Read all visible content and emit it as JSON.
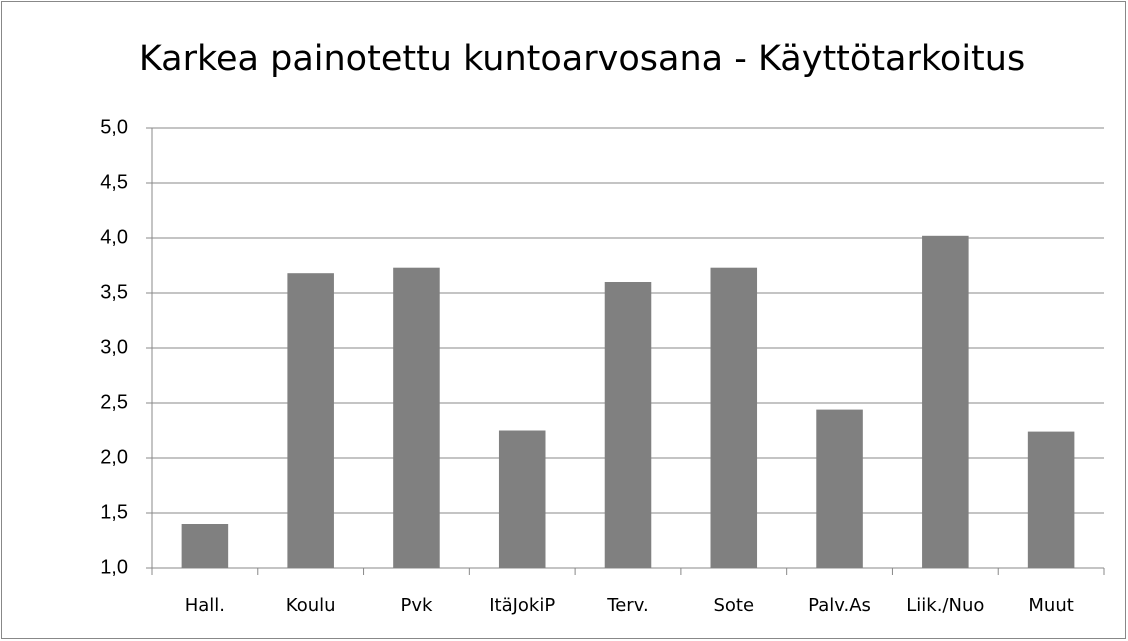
{
  "chart_data": {
    "type": "bar",
    "title": "Karkea painotettu kuntoarvosana - Käyttötarkoitus",
    "categories": [
      "Hall.",
      "Koulu",
      "Pvk",
      "ItäJokiP",
      "Terv.",
      "Sote",
      "Palv.As",
      "Liik./Nuo",
      "Muut"
    ],
    "values": [
      1.4,
      3.68,
      3.73,
      2.25,
      3.6,
      3.73,
      2.44,
      4.02,
      2.24
    ],
    "color": "#808080",
    "ylim": [
      1,
      5
    ],
    "yticks": [
      {
        "value": 1,
        "label": "1,0"
      },
      {
        "value": 1.5,
        "label": "1,5"
      },
      {
        "value": 2,
        "label": "2,0"
      },
      {
        "value": 2.5,
        "label": "2,5"
      },
      {
        "value": 3,
        "label": "3,0"
      },
      {
        "value": 3.5,
        "label": "3,5"
      },
      {
        "value": 4,
        "label": "4,0"
      },
      {
        "value": 4.5,
        "label": "4,5"
      },
      {
        "value": 5,
        "label": "5,0"
      }
    ],
    "grid": true
  }
}
